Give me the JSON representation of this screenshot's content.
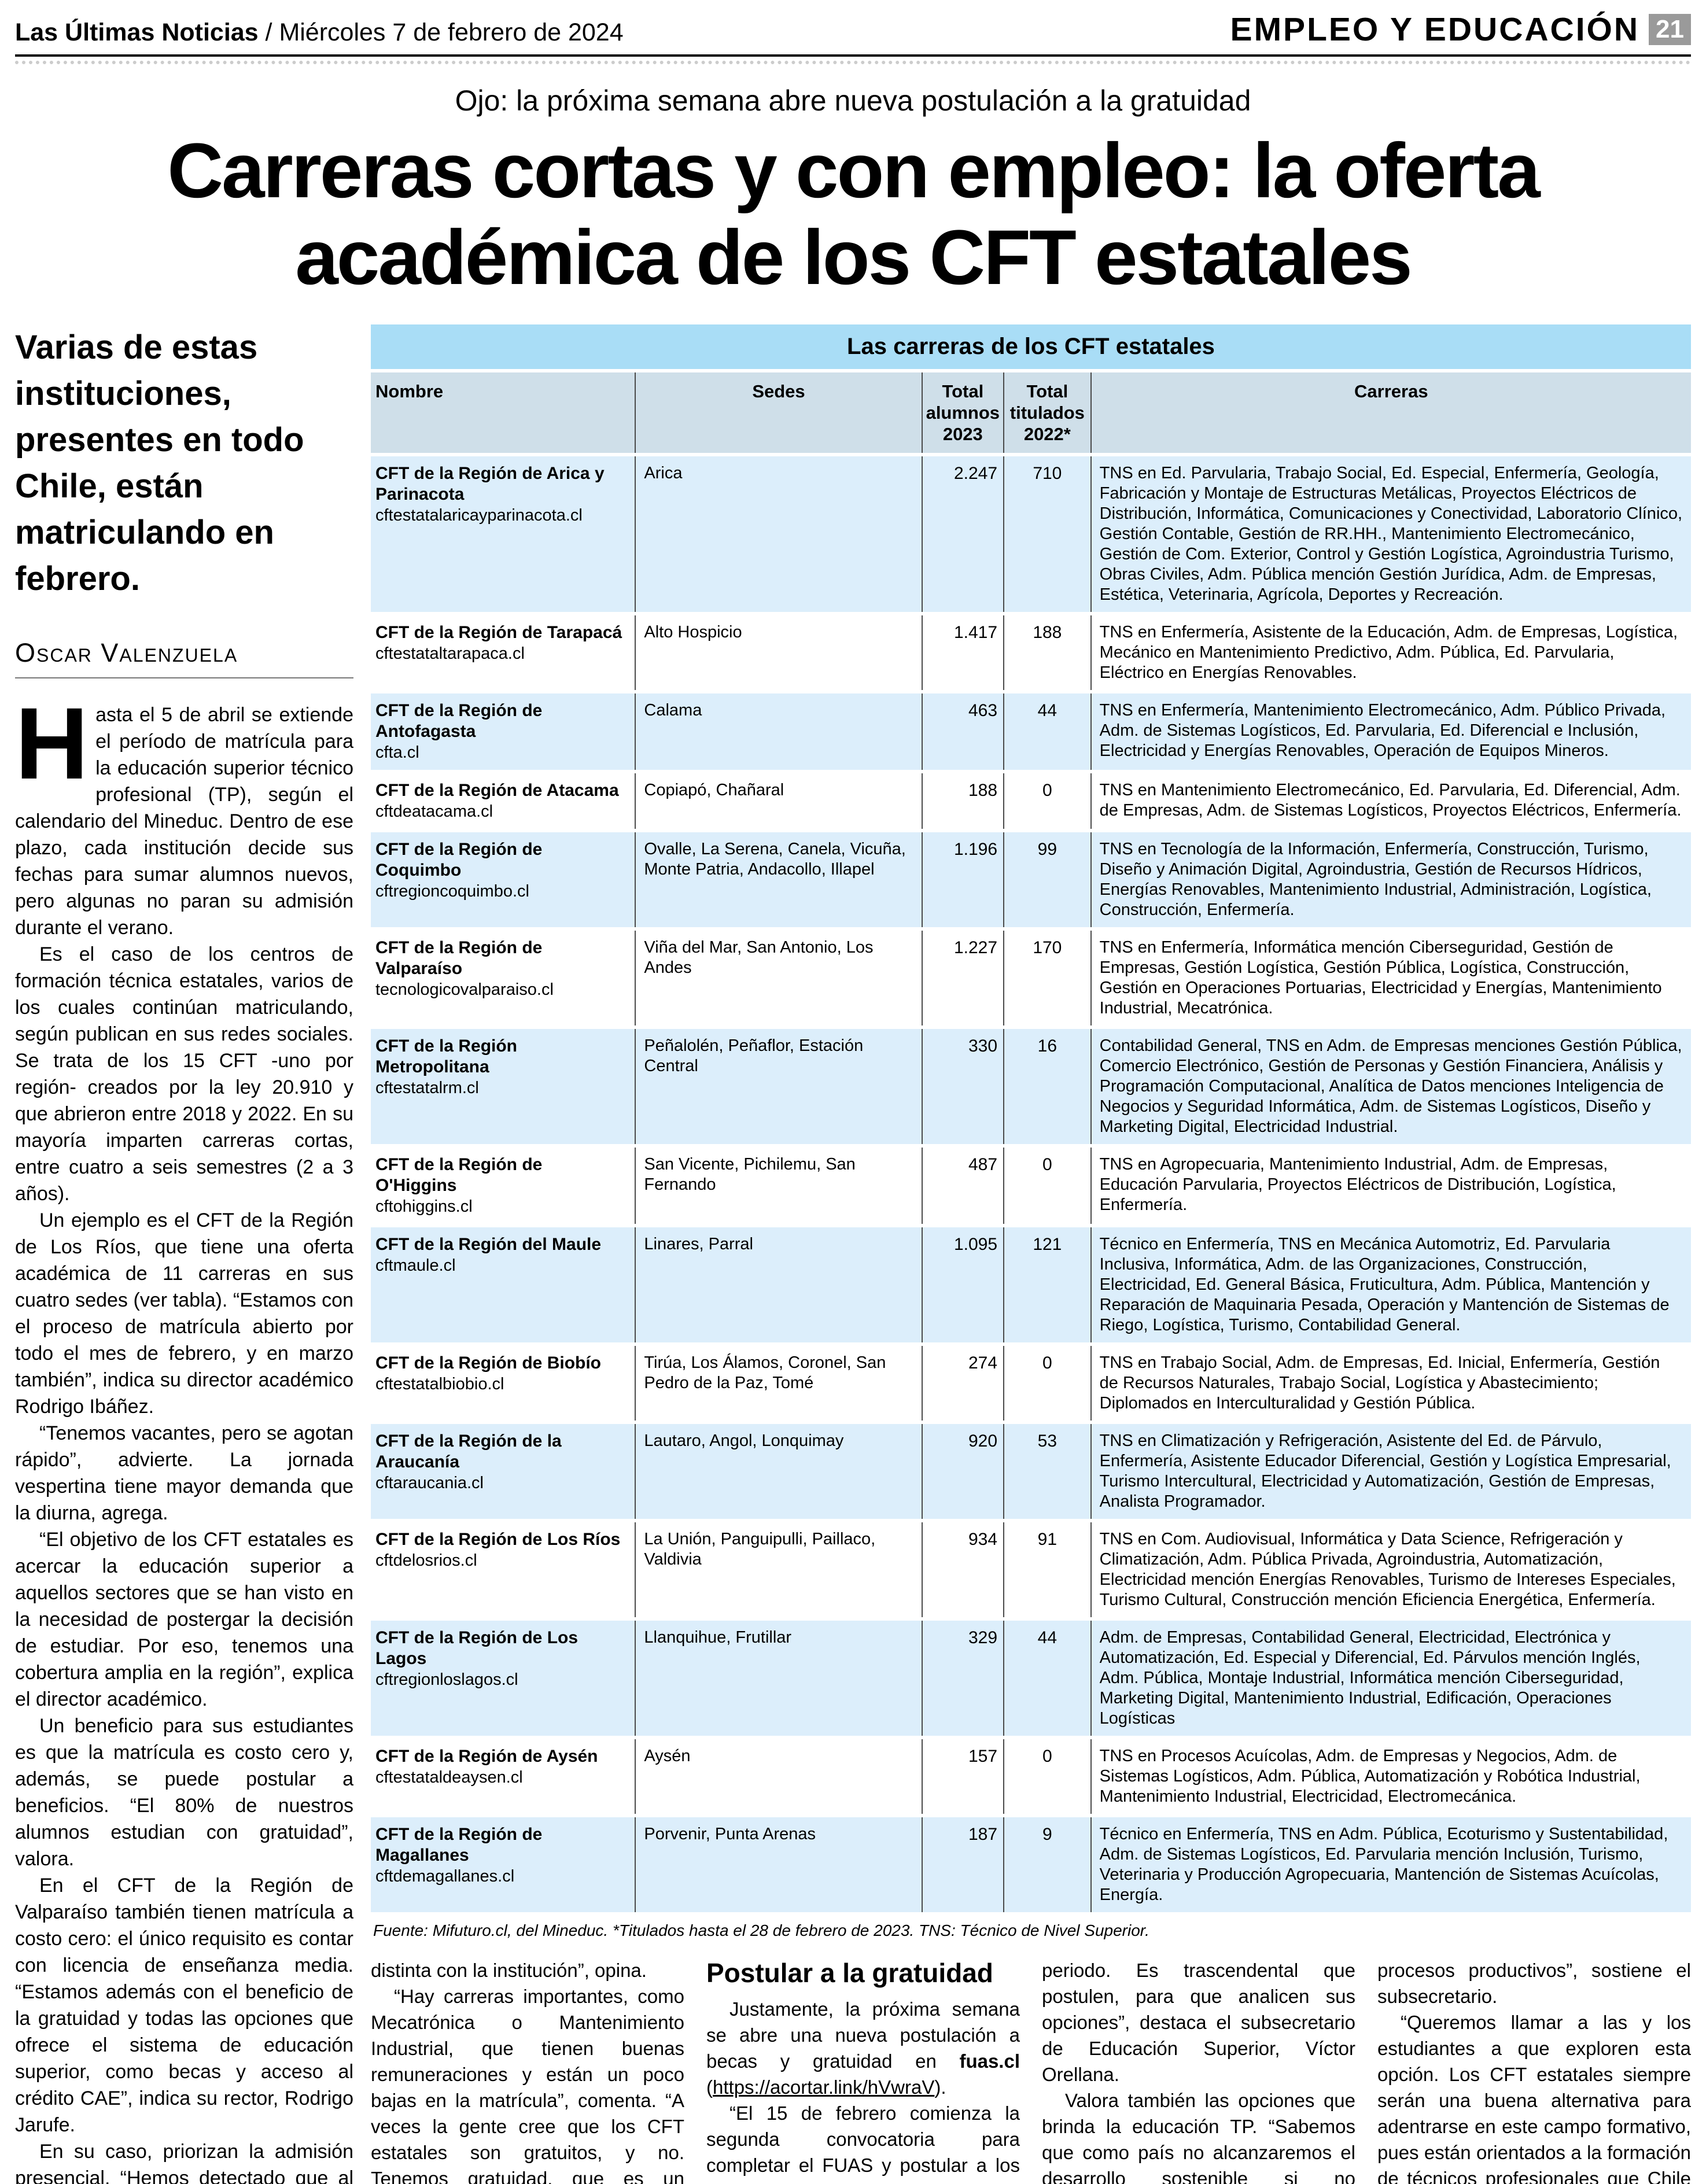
{
  "theme": {
    "table_title_bg": "#a9ddf6",
    "table_header_bg": "#cfdfe9",
    "table_row_alt_bg": "#dceefb",
    "page_badge_bg": "#9a9a9a",
    "rule_color": "#000000"
  },
  "masthead": {
    "paper_name": "Las Últimas Noticias",
    "separator": " / ",
    "date": "Miércoles 7 de febrero de 2024",
    "section": "EMPLEO Y EDUCACIÓN",
    "page_number": "21"
  },
  "article": {
    "kicker": "Ojo: la próxima semana abre nueva postulación a la gratuidad",
    "headline_line1": "Carreras cortas y con empleo: la oferta",
    "headline_line2": "académica de los CFT estatales",
    "lede": "Varias de estas instituciones, presentes en todo Chile, están matriculando en febrero.",
    "byline": "Oscar Valenzuela",
    "dropcap": "H",
    "left_paragraphs": [
      "asta el 5 de abril se extiende el período de matrícula para la educación superior técnico profesional (TP), según el calendario del Mineduc. Dentro de ese plazo, cada institución decide sus fechas para sumar alumnos nuevos, pero algunas no paran su admisión durante el verano.",
      "Es el caso de los centros de formación técnica estatales, varios de los cuales continúan matriculando, según publican en sus redes sociales. Se trata de los 15 CFT -uno por región- creados por la ley 20.910 y que abrieron entre 2018 y 2022. En su mayoría imparten carreras cortas, entre cuatro a seis semestres (2 a 3 años).",
      "Un ejemplo es el CFT de la Región de Los Ríos, que tiene una oferta académica de 11 carreras en sus cuatro sedes (ver tabla). “Estamos con el proceso de matrícula abierto por todo el mes de febrero, y en marzo también”, indica su director académico Rodrigo Ibáñez.",
      "“Tenemos vacantes, pero se agotan rápido”, advierte. La jornada vespertina tiene mayor demanda que la diurna, agrega.",
      "“El objetivo de los CFT estatales es acercar la educación superior a aquellos sectores que se han visto en la necesidad de postergar la decisión de estudiar. Por eso, tenemos una cobertura amplia en la región”, explica el director académico.",
      "Un beneficio para sus estudiantes es que la matrícula es costo cero y, además, se puede postular a beneficios. “El 80% de nuestros alumnos estudian con gratuidad”, valora.",
      "En el CFT de la Región de Valparaíso también tienen matrícula a costo cero: el único requisito es contar con licencia de enseñanza media. “Estamos además con el beneficio de la gratuidad y todas las opciones que ofrece el sistema de educación superior, como becas y acceso al crédito CAE”, indica su rector, Rodrigo Jarufe.",
      "En su caso, priorizan la admisión presencial. “Hemos detectado que al estudiante le gusta conocer el lugar, tiene una relación"
    ],
    "bottom": {
      "col1": [
        "distinta con la institución”, opina.",
        "“Hay carreras importantes, como Mecatrónica o Mantenimiento Industrial, que tienen buenas remuneraciones y están un poco bajas en la matrícula”, comenta. “A veces la gente cree que los CFT estatales son gratuitos, y no. Tenemos gratuidad, que es un beneficio que obtiene la persona”, aclara el rector Jarufe."
      ],
      "col2": {
        "heading": "Postular a la gratuidad",
        "p1_pre": "Justamente, la próxima semana se abre una nueva postulación a becas y gratuidad en ",
        "p1_link": "fuas.cl",
        "p1_open": " (",
        "p1_url": "https://acortar.link/hVwraV",
        "p1_close": ").",
        "p2": "“El 15 de febrero comienza la segunda convocatoria para completar el FUAS y postular a los beneficios estatales, para quienes no lo hicieron en el primer"
      },
      "col3": [
        "periodo. Es trascendental que postulen, para que analicen sus opciones”, destaca el subsecretario de Educación Superior, Víctor Orellana.",
        "Valora también las opciones que brinda la educación TP. “Sabemos que como país no alcanzaremos el desarrollo sostenible si no potenciamos la formación técnica, que es el motor de nuestros"
      ],
      "col4": [
        "procesos productivos”, sostiene el subsecretario.",
        "“Queremos llamar a las y los estudiantes a que exploren esta opción. Los CFT estatales siempre serán una buena alternativa para adentrarse en este campo formativo, pues están orientados a la formación de técnicos profesionales que Chile necesita”, concluye."
      ]
    }
  },
  "table": {
    "title": "Las carreras de los CFT estatales",
    "headers": [
      "Nombre",
      "Sedes",
      "Total alumnos 2023",
      "Total titulados 2022*",
      "Carreras"
    ],
    "source": "Fuente: Mifuturo.cl, del Mineduc. *Titulados hasta el 28 de febrero de 2023. TNS: Técnico de Nivel Superior.",
    "rows": [
      {
        "name": "CFT de la Región de Arica y Parinacota",
        "url": "cftestatalaricayparinacota.cl",
        "sedes": "Arica",
        "alumnos": "2.247",
        "titulados": "710",
        "carreras": "TNS en Ed. Parvularia, Trabajo Social, Ed. Especial, Enfermería, Geología, Fabricación y Montaje de Estructuras Metálicas, Proyectos Eléctricos de Distribución, Informática, Comunicaciones y Conectividad, Laboratorio Clínico, Gestión Contable, Gestión de RR.HH., Mantenimiento Electromecánico, Gestión de Com. Exterior, Control y Gestión Logística, Agroindustria Turismo, Obras Civiles, Adm. Pública mención Gestión Jurídica, Adm. de Empresas, Estética, Veterinaria, Agrícola, Deportes y Recreación."
      },
      {
        "name": "CFT de la Región de Tarapacá",
        "url": "cftestataltarapaca.cl",
        "sedes": "Alto Hospicio",
        "alumnos": "1.417",
        "titulados": "188",
        "carreras": "TNS en Enfermería, Asistente de la Educación, Adm. de Empresas, Logística, Mecánico en Mantenimiento Predictivo, Adm. Pública, Ed. Parvularia, Eléctrico en Energías Renovables."
      },
      {
        "name": "CFT de la Región de Antofagasta",
        "url": "cfta.cl",
        "sedes": "Calama",
        "alumnos": "463",
        "titulados": "44",
        "carreras": "TNS en Enfermería, Mantenimiento Electromecánico, Adm. Público Privada, Adm. de Sistemas Logísticos, Ed. Parvularia, Ed. Diferencial e Inclusión, Electricidad y Energías Renovables, Operación de Equipos Mineros."
      },
      {
        "name": "CFT de la Región de Atacama",
        "url": "cftdeatacama.cl",
        "sedes": "Copiapó, Chañaral",
        "alumnos": "188",
        "titulados": "0",
        "carreras": "TNS en Mantenimiento Electromecánico, Ed. Parvularia, Ed. Diferencial, Adm. de Empresas, Adm. de Sistemas Logísticos, Proyectos Eléctricos, Enfermería."
      },
      {
        "name": "CFT de la Región de Coquimbo",
        "url": "cftregioncoquimbo.cl",
        "sedes": "Ovalle, La Serena, Canela, Vicuña, Monte Patria, Andacollo, Illapel",
        "alumnos": "1.196",
        "titulados": "99",
        "carreras": "TNS en Tecnología de la Información, Enfermería, Construcción, Turismo, Diseño y Animación Digital, Agroindustria, Gestión de Recursos Hídricos, Energías Renovables, Mantenimiento Industrial, Administración, Logística, Construcción, Enfermería."
      },
      {
        "name": "CFT de la Región de Valparaíso",
        "url": "tecnologicovalparaiso.cl",
        "sedes": "Viña del Mar, San Antonio, Los Andes",
        "alumnos": "1.227",
        "titulados": "170",
        "carreras": "TNS en Enfermería, Informática mención Ciberseguridad, Gestión de Empresas, Gestión Logística, Gestión Pública, Logística, Construcción, Gestión en Operaciones Portuarias, Electricidad y Energías, Mantenimiento Industrial, Mecatrónica."
      },
      {
        "name": "CFT de la Región Metropolitana",
        "url": "cftestatalrm.cl",
        "sedes": "Peñalolén, Peñaflor, Estación Central",
        "alumnos": "330",
        "titulados": "16",
        "carreras": "Contabilidad General, TNS en Adm. de Empresas menciones Gestión Pública, Comercio Electrónico, Gestión de Personas y Gestión Financiera, Análisis y Programación Computacional, Analítica de Datos menciones Inteligencia de Negocios y Seguridad Informática, Adm. de Sistemas Logísticos, Diseño y Marketing Digital, Electricidad Industrial."
      },
      {
        "name": "CFT de la Región de O'Higgins",
        "url": "cftohiggins.cl",
        "sedes": "San Vicente, Pichilemu, San Fernando",
        "alumnos": "487",
        "titulados": "0",
        "carreras": "TNS en Agropecuaria, Mantenimiento Industrial, Adm. de Empresas, Educación Parvularia, Proyectos Eléctricos de Distribución, Logística, Enfermería."
      },
      {
        "name": "CFT de la Región del Maule",
        "url": "cftmaule.cl",
        "sedes": "Linares, Parral",
        "alumnos": "1.095",
        "titulados": "121",
        "carreras": "Técnico en Enfermería, TNS en Mecánica Automotriz, Ed. Parvularia Inclusiva, Informática, Adm. de las Organizaciones, Construcción, Electricidad, Ed. General Básica, Fruticultura, Adm. Pública, Mantención y Reparación de Maquinaria Pesada, Operación y Mantención de Sistemas de Riego, Logística, Turismo, Contabilidad General."
      },
      {
        "name": "CFT de la Región de Biobío",
        "url": "cftestatalbiobio.cl",
        "sedes": "Tirúa, Los Álamos, Coronel, San Pedro de la Paz, Tomé",
        "alumnos": "274",
        "titulados": "0",
        "carreras": "TNS en Trabajo Social, Adm. de Empresas, Ed. Inicial, Enfermería, Gestión de Recursos Naturales, Trabajo Social, Logística y Abastecimiento; Diplomados en Interculturalidad y Gestión Pública."
      },
      {
        "name": "CFT de la Región de la Araucanía",
        "url": "cftaraucania.cl",
        "sedes": "Lautaro, Angol, Lonquimay",
        "alumnos": "920",
        "titulados": "53",
        "carreras": "TNS en Climatización y Refrigeración, Asistente del Ed. de Párvulo, Enfermería, Asistente Educador Diferencial, Gestión y Logística Empresarial, Turismo Intercultural, Electricidad y Automatización, Gestión de Empresas, Analista Programador."
      },
      {
        "name": "CFT de la Región de Los Ríos",
        "url": "cftdelosrios.cl",
        "sedes": "La Unión, Panguipulli, Paillaco, Valdivia",
        "alumnos": "934",
        "titulados": "91",
        "carreras": "TNS en Com. Audiovisual, Informática y Data Science, Refrigeración y Climatización, Adm. Pública Privada, Agroindustria, Automatización, Electricidad mención Energías Renovables, Turismo de Intereses Especiales, Turismo Cultural, Construcción mención Eficiencia Energética, Enfermería."
      },
      {
        "name": "CFT de la Región de Los Lagos",
        "url": "cftregionloslagos.cl",
        "sedes": "Llanquihue, Frutillar",
        "alumnos": "329",
        "titulados": "44",
        "carreras": "Adm. de Empresas, Contabilidad General, Electricidad, Electrónica y Automatización, Ed. Especial y Diferencial, Ed. Párvulos mención Inglés, Adm. Pública, Montaje Industrial, Informática mención Ciberseguridad, Marketing Digital, Mantenimiento Industrial, Edificación, Operaciones Logísticas"
      },
      {
        "name": "CFT de la Región de Aysén",
        "url": "cftestataldeaysen.cl",
        "sedes": "Aysén",
        "alumnos": "157",
        "titulados": "0",
        "carreras": "TNS en Procesos Acuícolas, Adm. de Empresas y Negocios, Adm. de Sistemas Logísticos, Adm. Pública, Automatización y Robótica Industrial, Mantenimiento Industrial, Electricidad, Electromecánica."
      },
      {
        "name": "CFT de la Región de Magallanes",
        "url": "cftdemagallanes.cl",
        "sedes": "Porvenir, Punta Arenas",
        "alumnos": "187",
        "titulados": "9",
        "carreras": "Técnico en Enfermería, TNS en Adm. Pública, Ecoturismo y Sustentabilidad, Adm. de Sistemas Logísticos, Ed. Parvularia mención Inclusión, Turismo, Veterinaria y Producción Agropecuaria, Mantención de Sistemas Acuícolas, Energía."
      }
    ]
  }
}
